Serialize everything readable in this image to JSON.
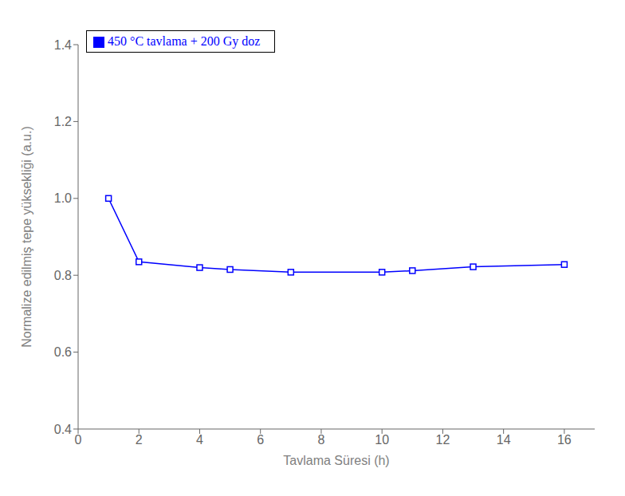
{
  "chart_data": {
    "type": "line",
    "xlabel": "Tavlama Süresi (h)",
    "ylabel": "Normalize edilmiş tepe yüksekliği (a.u.)",
    "x": [
      1,
      2,
      4,
      5,
      7,
      10,
      11,
      13,
      16
    ],
    "series": [
      {
        "name": "450 °C tavlama + 200 Gy doz",
        "color": "#0000ff",
        "values": [
          1.0,
          0.835,
          0.82,
          0.815,
          0.808,
          0.808,
          0.812,
          0.822,
          0.828
        ],
        "marker": "square"
      }
    ],
    "xlim": [
      0,
      17
    ],
    "ylim": [
      0.4,
      1.4
    ],
    "xticks": [
      0,
      2,
      4,
      6,
      8,
      10,
      12,
      14,
      16
    ],
    "yticks": [
      0.4,
      0.6,
      0.8,
      {
        "value": 1.0,
        "label": "1.0"
      },
      1.2,
      1.4
    ],
    "legend": "upper left",
    "grid": false
  }
}
